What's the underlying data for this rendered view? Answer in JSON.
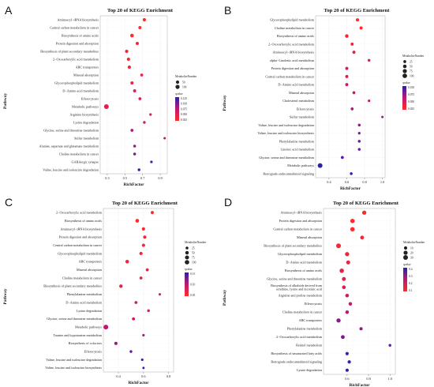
{
  "colors": {
    "high_qvalue": "#ff2a2a",
    "low_qvalue": "#2a1fb0",
    "mid_qvalue": "#c01870",
    "axis": "#555555"
  },
  "chart_data": [
    {
      "letter": "A",
      "type": "scatter",
      "title": "Top 20 of KEGG Enrichment",
      "xlabel": "RichFactor",
      "ylabel": "Pathway",
      "xlim": [
        0.22,
        0.98
      ],
      "xticks": [
        0.3,
        0.5,
        0.7,
        0.9
      ],
      "xtick_labels": [
        "0.3",
        "0.5",
        "0.7",
        "0.9"
      ],
      "size_legend": {
        "title": "MetaboliteNumber",
        "values": [
          50,
          100
        ]
      },
      "color_legend": {
        "title": "qvalue",
        "values": [
          0.125,
          0.1,
          0.075,
          0.05,
          0.025
        ],
        "labels": [
          "0.125",
          "0.100",
          "0.075",
          "0.050",
          "0.025"
        ]
      },
      "points": [
        {
          "pathway": "Aminoacyl−tRNA biosynthesis",
          "x": 0.72,
          "count": 50,
          "q": 0.02
        },
        {
          "pathway": "Central carbon metabolism in cancer",
          "x": 0.67,
          "count": 45,
          "q": 0.02
        },
        {
          "pathway": "Biosynthesis of amino acids",
          "x": 0.58,
          "count": 70,
          "q": 0.02
        },
        {
          "pathway": "Protein digestion and absorption",
          "x": 0.64,
          "count": 45,
          "q": 0.03
        },
        {
          "pathway": "Biosynthesis of plant secondary metabolites",
          "x": 0.52,
          "count": 50,
          "q": 0.03
        },
        {
          "pathway": "2−Oxocarboxylic acid metabolism",
          "x": 0.54,
          "count": 50,
          "q": 0.03
        },
        {
          "pathway": "ABC transporters",
          "x": 0.55,
          "count": 55,
          "q": 0.03
        },
        {
          "pathway": "Mineral absorption",
          "x": 0.69,
          "count": 35,
          "q": 0.04
        },
        {
          "pathway": "Glycerophospholipid metabolism",
          "x": 0.58,
          "count": 45,
          "q": 0.04
        },
        {
          "pathway": "D−Amino acid metabolism",
          "x": 0.61,
          "count": 40,
          "q": 0.05
        },
        {
          "pathway": "Efferocytosis",
          "x": 0.67,
          "count": 35,
          "q": 0.05
        },
        {
          "pathway": "Metabolic pathways",
          "x": 0.29,
          "count": 150,
          "q": 0.05
        },
        {
          "pathway": "Arginine biosynthesis",
          "x": 0.79,
          "count": 20,
          "q": 0.06
        },
        {
          "pathway": "Lysine degradation",
          "x": 0.72,
          "count": 25,
          "q": 0.06
        },
        {
          "pathway": "Glycine, serine and threonine metabolism",
          "x": 0.58,
          "count": 35,
          "q": 0.08
        },
        {
          "pathway": "Sulfur metabolism",
          "x": 0.95,
          "count": 15,
          "q": 0.08
        },
        {
          "pathway": "Alanine, aspartate and glutamate metabolism",
          "x": 0.61,
          "count": 30,
          "q": 0.09
        },
        {
          "pathway": "Choline metabolism in cancer",
          "x": 0.61,
          "count": 30,
          "q": 0.1
        },
        {
          "pathway": "GABAergic synapse",
          "x": 0.8,
          "count": 20,
          "q": 0.12
        },
        {
          "pathway": "Valine, leucine and isoleucine degradation",
          "x": 0.66,
          "count": 25,
          "q": 0.13
        }
      ]
    },
    {
      "letter": "B",
      "type": "scatter",
      "title": "Top 20 of KEGG Enrichment",
      "xlabel": "RichFactor",
      "ylabel": "Pathway",
      "xlim": [
        0.25,
        1.03
      ],
      "xticks": [
        0.4,
        0.6,
        0.8,
        1.0
      ],
      "xtick_labels": [
        "0.4",
        "0.6",
        "0.8",
        "1.0"
      ],
      "size_legend": {
        "title": "MetaboliteNumber",
        "values": [
          25,
          50,
          75,
          100
        ]
      },
      "color_legend": {
        "title": "qvalue",
        "values": [
          0.1,
          0.075,
          0.05,
          0.025
        ],
        "labels": [
          "0.100",
          "0.075",
          "0.050",
          "0.025"
        ]
      },
      "points": [
        {
          "pathway": "Glycerophospholipid metabolism",
          "x": 0.72,
          "count": 35,
          "q": 0.01
        },
        {
          "pathway": "Choline metabolism in cancer",
          "x": 0.76,
          "count": 30,
          "q": 0.01
        },
        {
          "pathway": "Biosynthesis of amino acids",
          "x": 0.6,
          "count": 45,
          "q": 0.02
        },
        {
          "pathway": "2−Oxocarboxylic acid metabolism",
          "x": 0.66,
          "count": 30,
          "q": 0.02
        },
        {
          "pathway": "Aminoacyl−tRNA biosynthesis",
          "x": 0.68,
          "count": 30,
          "q": 0.03
        },
        {
          "pathway": "alpha−Linolenic acid metabolism",
          "x": 0.85,
          "count": 20,
          "q": 0.04
        },
        {
          "pathway": "Protein digestion and absorption",
          "x": 0.6,
          "count": 30,
          "q": 0.04
        },
        {
          "pathway": "Central carbon metabolism in cancer",
          "x": 0.6,
          "count": 30,
          "q": 0.04
        },
        {
          "pathway": "D−Amino acid metabolism",
          "x": 0.6,
          "count": 30,
          "q": 0.05
        },
        {
          "pathway": "Mineral absorption",
          "x": 0.68,
          "count": 25,
          "q": 0.05
        },
        {
          "pathway": "Cholesterol metabolism",
          "x": 0.85,
          "count": 15,
          "q": 0.05
        },
        {
          "pathway": "Efferocytosis",
          "x": 0.66,
          "count": 25,
          "q": 0.06
        },
        {
          "pathway": "Sulfur metabolism",
          "x": 1.0,
          "count": 10,
          "q": 0.07
        },
        {
          "pathway": "Valine, leucine and isoleucine degradation",
          "x": 0.74,
          "count": 20,
          "q": 0.07
        },
        {
          "pathway": "Valine, leucine and isoleucine biosynthesis",
          "x": 0.74,
          "count": 15,
          "q": 0.08
        },
        {
          "pathway": "Phenylalanine metabolism",
          "x": 0.74,
          "count": 20,
          "q": 0.08
        },
        {
          "pathway": "Linoleic acid metabolism",
          "x": 0.74,
          "count": 20,
          "q": 0.08
        },
        {
          "pathway": "Glycine, serine and threonine metabolism",
          "x": 0.55,
          "count": 25,
          "q": 0.09
        },
        {
          "pathway": "Metabolic pathways",
          "x": 0.3,
          "count": 110,
          "q": 0.1
        },
        {
          "pathway": "Retrograde endocannabinoid signaling",
          "x": 0.65,
          "count": 20,
          "q": 0.1
        }
      ]
    },
    {
      "letter": "C",
      "type": "scatter",
      "title": "Top 20 of KEGG Enrichment",
      "xlabel": "RichFactor",
      "ylabel": "Pathway",
      "xlim": [
        0.28,
        0.84
      ],
      "xticks": [
        0.4,
        0.6,
        0.8
      ],
      "xtick_labels": [
        "0.4",
        "0.6",
        "0.8"
      ],
      "size_legend": {
        "title": "MetaboliteNumber",
        "values": [
          25,
          50,
          75,
          100
        ]
      },
      "color_legend": {
        "title": "qvalue",
        "values": [
          0.15,
          0.1,
          0.05
        ],
        "labels": [
          "0.15",
          "0.10",
          "0.05"
        ]
      },
      "points": [
        {
          "pathway": "2−Oxocarboxylic acid metabolism",
          "x": 0.67,
          "count": 35,
          "q": 0.02
        },
        {
          "pathway": "Biosynthesis of amino acids",
          "x": 0.55,
          "count": 60,
          "q": 0.02
        },
        {
          "pathway": "Aminoacyl−tRNA biosynthesis",
          "x": 0.6,
          "count": 40,
          "q": 0.03
        },
        {
          "pathway": "Protein digestion and absorption",
          "x": 0.61,
          "count": 40,
          "q": 0.03
        },
        {
          "pathway": "Central carbon metabolism in cancer",
          "x": 0.6,
          "count": 40,
          "q": 0.03
        },
        {
          "pathway": "Glycerophospholipid metabolism",
          "x": 0.58,
          "count": 40,
          "q": 0.04
        },
        {
          "pathway": "ABC transporters",
          "x": 0.47,
          "count": 55,
          "q": 0.04
        },
        {
          "pathway": "Mineral absorption",
          "x": 0.63,
          "count": 30,
          "q": 0.05
        },
        {
          "pathway": "Choline metabolism in cancer",
          "x": 0.58,
          "count": 30,
          "q": 0.05
        },
        {
          "pathway": "Biosynthesis of plant secondary metabolites",
          "x": 0.42,
          "count": 45,
          "q": 0.05
        },
        {
          "pathway": "Phenylalanine metabolism",
          "x": 0.73,
          "count": 15,
          "q": 0.06
        },
        {
          "pathway": "D−Amino acid metabolism",
          "x": 0.54,
          "count": 30,
          "q": 0.07
        },
        {
          "pathway": "Lysine degradation",
          "x": 0.64,
          "count": 20,
          "q": 0.08
        },
        {
          "pathway": "Glycine, serine and threonine metabolism",
          "x": 0.52,
          "count": 30,
          "q": 0.09
        },
        {
          "pathway": "Metabolic pathways",
          "x": 0.3,
          "count": 120,
          "q": 0.1
        },
        {
          "pathway": "Taurine and hypotaurine metabolism",
          "x": 0.6,
          "count": 15,
          "q": 0.12
        },
        {
          "pathway": "Biosynthesis of cofactors",
          "x": 0.38,
          "count": 40,
          "q": 0.12
        },
        {
          "pathway": "Efferocytosis",
          "x": 0.5,
          "count": 20,
          "q": 0.15
        },
        {
          "pathway": "Valine, leucine and isoleucine degradation",
          "x": 0.59,
          "count": 15,
          "q": 0.17
        },
        {
          "pathway": "Valine, leucine and isoleucine biosynthesis",
          "x": 0.6,
          "count": 10,
          "q": 0.18
        }
      ]
    },
    {
      "letter": "D",
      "type": "scatter",
      "title": "Top 20 of KEGG Enrichment",
      "xlabel": "RichFactor",
      "ylabel": "Pathway",
      "xlim": [
        0.38,
        1.05
      ],
      "xticks": [
        0.6,
        0.8,
        1.0
      ],
      "xtick_labels": [
        "0.6",
        "0.8",
        "1.0"
      ],
      "size_legend": {
        "title": "MetaboliteNumber",
        "values": [
          10,
          20,
          30
        ]
      },
      "color_legend": {
        "title": "qvalue",
        "values": [
          0.4,
          0.3,
          0.2,
          0.1
        ],
        "labels": [
          "0.4",
          "0.3",
          "0.2",
          "0.1"
        ]
      },
      "points": [
        {
          "pathway": "Aminoacyl−tRNA biosynthesis",
          "x": 0.76,
          "count": 20,
          "q": 0.05
        },
        {
          "pathway": "Protein digestion and absorption",
          "x": 0.65,
          "count": 22,
          "q": 0.05
        },
        {
          "pathway": "Central carbon metabolism in cancer",
          "x": 0.65,
          "count": 22,
          "q": 0.06
        },
        {
          "pathway": "Mineral absorption",
          "x": 0.74,
          "count": 15,
          "q": 0.08
        },
        {
          "pathway": "Biosynthesis of plant secondary metabolites",
          "x": 0.52,
          "count": 28,
          "q": 0.08
        },
        {
          "pathway": "Glycerophospholipid metabolism",
          "x": 0.6,
          "count": 20,
          "q": 0.1
        },
        {
          "pathway": "D−Amino acid metabolism",
          "x": 0.61,
          "count": 18,
          "q": 0.11
        },
        {
          "pathway": "Biosynthesis of amino acids",
          "x": 0.55,
          "count": 22,
          "q": 0.12
        },
        {
          "pathway": "Glycine, serine and threonine metabolism",
          "x": 0.57,
          "count": 16,
          "q": 0.14
        },
        {
          "pathway": "Biosynthesis of alkaloids derived from\nornithine, lysine and nicotinic acid",
          "x": 0.57,
          "count": 14,
          "q": 0.16
        },
        {
          "pathway": "Arginine and proline metabolism",
          "x": 0.6,
          "count": 13,
          "q": 0.2
        },
        {
          "pathway": "Efferocytosis",
          "x": 0.63,
          "count": 12,
          "q": 0.22
        },
        {
          "pathway": "Choline metabolism in cancer",
          "x": 0.6,
          "count": 12,
          "q": 0.25
        },
        {
          "pathway": "ABC transporters",
          "x": 0.52,
          "count": 20,
          "q": 0.3
        },
        {
          "pathway": "Phenylalanine metabolism",
          "x": 0.73,
          "count": 9,
          "q": 0.3
        },
        {
          "pathway": "2−Oxocarboxylic acid metabolism",
          "x": 0.56,
          "count": 15,
          "q": 0.32
        },
        {
          "pathway": "Retinol metabolism",
          "x": 1.0,
          "count": 5,
          "q": 0.36
        },
        {
          "pathway": "Biosynthesis of unsaturated fatty acids",
          "x": 0.6,
          "count": 10,
          "q": 0.38
        },
        {
          "pathway": "Retrograde endocannabinoid signaling",
          "x": 0.62,
          "count": 10,
          "q": 0.4
        },
        {
          "pathway": "Lysine degradation",
          "x": 0.6,
          "count": 9,
          "q": 0.42
        }
      ]
    }
  ]
}
